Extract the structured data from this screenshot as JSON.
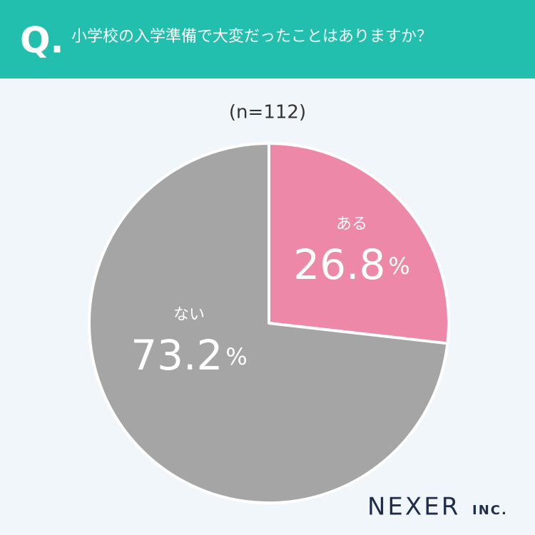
{
  "question_label": "Q.",
  "logo": {
    "name": "NEXER",
    "suffix": "INC."
  },
  "chart_data": {
    "type": "pie",
    "title": "小学校の入学準備で大変だったことはありますか？",
    "subtitle": "(n=112)",
    "categories": [
      "ある",
      "ない"
    ],
    "values": [
      26.8,
      73.2
    ],
    "value_labels": [
      "26.8%",
      "73.2%"
    ],
    "colors": [
      "#ee88a8",
      "#a5a5a5"
    ]
  }
}
